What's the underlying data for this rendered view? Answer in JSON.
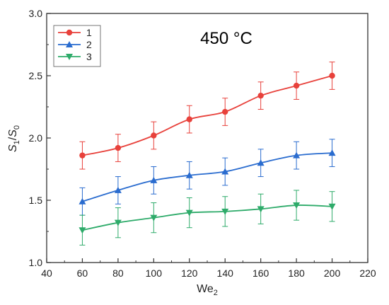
{
  "chart_data": {
    "type": "line",
    "title": "",
    "annotation": "450 °C",
    "xlabel": {
      "main": "We",
      "sub": "2"
    },
    "ylabel": {
      "italic1": "S",
      "sub1": "1",
      "slash": "/",
      "italic2": "S",
      "sub2": "0"
    },
    "xlim": [
      40,
      220
    ],
    "ylim": [
      1.0,
      3.0
    ],
    "xticks": [
      "40",
      "60",
      "80",
      "100",
      "120",
      "140",
      "160",
      "180",
      "200",
      "220"
    ],
    "yticks": [
      "1.0",
      "1.5",
      "2.0",
      "2.5",
      "3.0"
    ],
    "grid": false,
    "legend_position": "top-left",
    "x": [
      60,
      80,
      100,
      120,
      140,
      160,
      180,
      200
    ],
    "series": [
      {
        "name": "1",
        "color": "#e8413b",
        "marker": "circle",
        "values": [
          1.86,
          1.92,
          2.02,
          2.15,
          2.21,
          2.34,
          2.42,
          2.5
        ],
        "errors": [
          0.11,
          0.11,
          0.11,
          0.11,
          0.11,
          0.11,
          0.11,
          0.11
        ]
      },
      {
        "name": "2",
        "color": "#2a6ccf",
        "marker": "triangle-up",
        "values": [
          1.49,
          1.58,
          1.66,
          1.7,
          1.73,
          1.8,
          1.86,
          1.88
        ],
        "errors": [
          0.11,
          0.11,
          0.11,
          0.11,
          0.11,
          0.11,
          0.11,
          0.11
        ]
      },
      {
        "name": "3",
        "color": "#2eab6a",
        "marker": "triangle-down",
        "values": [
          1.26,
          1.32,
          1.36,
          1.4,
          1.41,
          1.43,
          1.46,
          1.45
        ],
        "errors": [
          0.12,
          0.12,
          0.12,
          0.12,
          0.12,
          0.12,
          0.12,
          0.12
        ]
      }
    ]
  }
}
